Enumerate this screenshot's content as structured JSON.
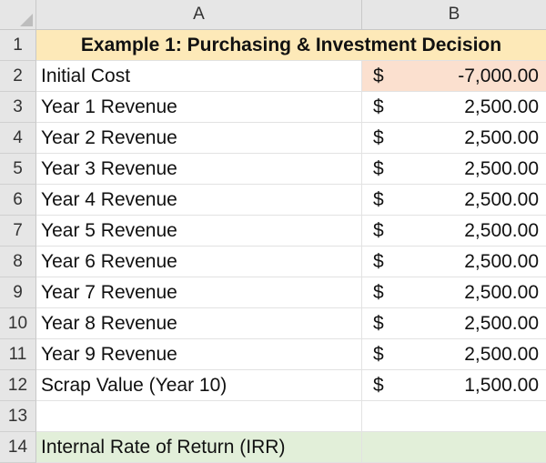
{
  "columns": [
    "A",
    "B"
  ],
  "colors": {
    "header_fill": "#fde9b8",
    "initial_cost_fill": "#fbe0cf",
    "irr_fill": "#e2efd9"
  },
  "rows": [
    {
      "num": "1",
      "title": "Example 1: Purchasing & Investment Decision"
    },
    {
      "num": "2",
      "label": "Initial Cost",
      "currency": "$",
      "amount": "-7,000.00"
    },
    {
      "num": "3",
      "label": "Year 1 Revenue",
      "currency": "$",
      "amount": "2,500.00"
    },
    {
      "num": "4",
      "label": "Year 2 Revenue",
      "currency": "$",
      "amount": "2,500.00"
    },
    {
      "num": "5",
      "label": "Year 3 Revenue",
      "currency": "$",
      "amount": "2,500.00"
    },
    {
      "num": "6",
      "label": "Year 4 Revenue",
      "currency": "$",
      "amount": "2,500.00"
    },
    {
      "num": "7",
      "label": "Year 5 Revenue",
      "currency": "$",
      "amount": "2,500.00"
    },
    {
      "num": "8",
      "label": "Year 6 Revenue",
      "currency": "$",
      "amount": "2,500.00"
    },
    {
      "num": "9",
      "label": "Year 7 Revenue",
      "currency": "$",
      "amount": "2,500.00"
    },
    {
      "num": "10",
      "label": "Year 8 Revenue",
      "currency": "$",
      "amount": "2,500.00"
    },
    {
      "num": "11",
      "label": "Year 9 Revenue",
      "currency": "$",
      "amount": "2,500.00"
    },
    {
      "num": "12",
      "label": "Scrap Value (Year 10)",
      "currency": "$",
      "amount": "1,500.00"
    },
    {
      "num": "13",
      "label": ""
    },
    {
      "num": "14",
      "label": "Internal Rate of Return (IRR)",
      "currency": "",
      "amount": ""
    }
  ]
}
